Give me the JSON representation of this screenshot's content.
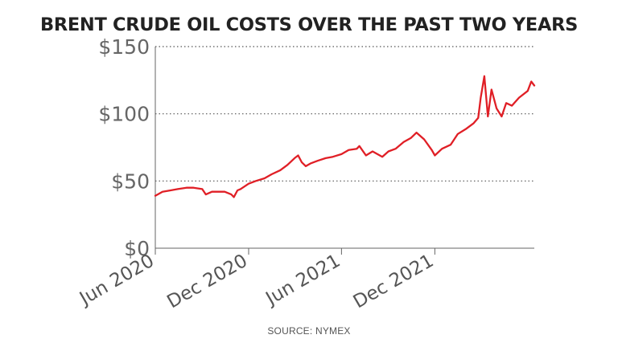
{
  "title": "BRENT CRUDE OIL COSTS OVER THE PAST TWO YEARS",
  "source": "SOURCE: NYMEX",
  "colors": {
    "line": "#e01f26",
    "gridline": "#555555",
    "axis": "#666666",
    "text": "#222222"
  },
  "chart_data": {
    "type": "line",
    "title": "BRENT CRUDE OIL COSTS OVER THE PAST TWO YEARS",
    "xlabel": "",
    "ylabel": "",
    "ylim": [
      0,
      150
    ],
    "yticks": [
      0,
      50,
      100,
      150
    ],
    "ytick_labels": [
      "$0",
      "$50",
      "$100",
      "$150"
    ],
    "xlim": [
      "2020-06-01",
      "2022-06-14"
    ],
    "xticks": [
      "2020-06-01",
      "2020-12-01",
      "2021-06-01",
      "2021-12-01"
    ],
    "xtick_labels": [
      "Jun 2020",
      "Dec 2020",
      "Jun 2021",
      "Dec 2021"
    ],
    "grid": "horizontal dotted",
    "legend": "none",
    "series": [
      {
        "x": [
          "2020-06-01",
          "2020-06-15",
          "2020-07-01",
          "2020-07-15",
          "2020-08-01",
          "2020-08-15",
          "2020-09-01",
          "2020-09-08",
          "2020-09-20",
          "2020-10-01",
          "2020-10-15",
          "2020-10-28",
          "2020-11-02",
          "2020-11-09",
          "2020-11-15",
          "2020-12-01",
          "2020-12-15",
          "2021-01-01",
          "2021-01-15",
          "2021-02-01",
          "2021-02-15",
          "2021-03-01",
          "2021-03-08",
          "2021-03-15",
          "2021-03-23",
          "2021-04-01",
          "2021-04-15",
          "2021-05-01",
          "2021-05-15",
          "2021-06-01",
          "2021-06-15",
          "2021-07-01",
          "2021-07-06",
          "2021-07-19",
          "2021-08-01",
          "2021-08-20",
          "2021-09-01",
          "2021-09-15",
          "2021-10-01",
          "2021-10-15",
          "2021-10-26",
          "2021-11-10",
          "2021-11-25",
          "2021-12-01",
          "2021-12-15",
          "2022-01-01",
          "2022-01-15",
          "2022-02-01",
          "2022-02-15",
          "2022-02-24",
          "2022-03-01",
          "2022-03-08",
          "2022-03-15",
          "2022-03-22",
          "2022-04-01",
          "2022-04-11",
          "2022-04-20",
          "2022-05-01",
          "2022-05-15",
          "2022-06-01",
          "2022-06-08",
          "2022-06-14"
        ],
        "y": [
          39,
          42,
          43,
          44,
          45,
          45,
          44,
          40,
          42,
          42,
          42,
          40,
          38,
          43,
          44,
          48,
          50,
          52,
          55,
          58,
          62,
          67,
          69,
          64,
          61,
          63,
          65,
          67,
          68,
          70,
          73,
          74,
          76,
          69,
          72,
          68,
          72,
          74,
          79,
          82,
          86,
          81,
          73,
          69,
          74,
          77,
          85,
          89,
          93,
          97,
          112,
          128,
          98,
          118,
          104,
          98,
          108,
          106,
          112,
          117,
          124,
          121
        ]
      }
    ]
  }
}
